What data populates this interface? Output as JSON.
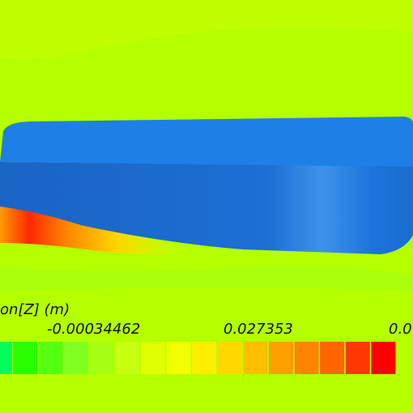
{
  "legend": {
    "title": "on[Z] (m)",
    "labels": [
      "-0.00034462",
      "0.027353",
      "0.0"
    ]
  }
}
